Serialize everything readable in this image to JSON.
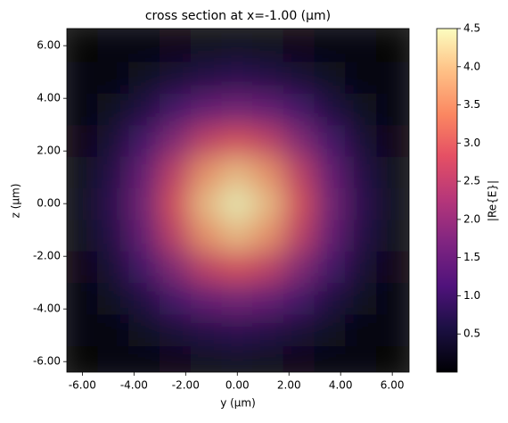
{
  "chart_data": {
    "type": "heatmap",
    "title": "cross section at x=-1.00 (μm)",
    "x_label": "y (μm)",
    "y_label": "z (μm)",
    "colorbar_label": "|Re{E}|",
    "colormap": "magma",
    "x": [
      -6,
      -4.8,
      -3.6,
      -2.4,
      -1.2,
      0,
      1.2,
      2.4,
      3.6,
      4.8,
      6
    ],
    "y": [
      -6,
      -4.8,
      -3.6,
      -2.4,
      -1.2,
      0,
      1.2,
      2.4,
      3.6,
      4.8,
      6
    ],
    "values": [
      [
        0.02,
        0.04,
        0.1,
        0.17,
        0.24,
        0.27,
        0.24,
        0.17,
        0.1,
        0.04,
        0.02
      ],
      [
        0.04,
        0.12,
        0.27,
        0.47,
        0.66,
        0.74,
        0.66,
        0.47,
        0.27,
        0.12,
        0.04
      ],
      [
        0.1,
        0.27,
        0.59,
        1.04,
        1.46,
        1.63,
        1.46,
        1.04,
        0.59,
        0.27,
        0.1
      ],
      [
        0.17,
        0.47,
        1.04,
        1.83,
        2.57,
        2.87,
        2.57,
        1.83,
        1.04,
        0.47,
        0.17
      ],
      [
        0.24,
        0.66,
        1.46,
        2.57,
        3.6,
        4.02,
        3.6,
        2.57,
        1.46,
        0.66,
        0.24
      ],
      [
        0.27,
        0.74,
        1.63,
        2.87,
        4.02,
        4.5,
        4.02,
        2.87,
        1.63,
        0.74,
        0.27
      ],
      [
        0.24,
        0.66,
        1.46,
        2.57,
        3.6,
        4.02,
        3.6,
        2.57,
        1.46,
        0.66,
        0.24
      ],
      [
        0.17,
        0.47,
        1.04,
        1.83,
        2.57,
        2.87,
        2.57,
        1.83,
        1.04,
        0.47,
        0.17
      ],
      [
        0.1,
        0.27,
        0.59,
        1.04,
        1.46,
        1.63,
        1.46,
        1.04,
        0.59,
        0.27,
        0.1
      ],
      [
        0.04,
        0.12,
        0.27,
        0.47,
        0.66,
        0.74,
        0.66,
        0.47,
        0.27,
        0.12,
        0.04
      ],
      [
        0.02,
        0.04,
        0.1,
        0.17,
        0.24,
        0.27,
        0.24,
        0.17,
        0.1,
        0.04,
        0.02
      ]
    ],
    "xlim": [
      -6.6,
      6.65
    ],
    "ylim": [
      -6.4,
      6.65
    ],
    "xticks": [
      {
        "value": -6,
        "label": "-6.00"
      },
      {
        "value": -4,
        "label": "-4.00"
      },
      {
        "value": -2,
        "label": "-2.00"
      },
      {
        "value": 0,
        "label": "0.00"
      },
      {
        "value": 2,
        "label": "2.00"
      },
      {
        "value": 4,
        "label": "4.00"
      },
      {
        "value": 6,
        "label": "6.00"
      }
    ],
    "yticks": [
      {
        "value": -6,
        "label": "-6.00"
      },
      {
        "value": -4,
        "label": "-4.00"
      },
      {
        "value": -2,
        "label": "-2.00"
      },
      {
        "value": 0,
        "label": "0.00"
      },
      {
        "value": 2,
        "label": "2.00"
      },
      {
        "value": 4,
        "label": "4.00"
      },
      {
        "value": 6,
        "label": "6.00"
      }
    ],
    "clim": [
      0,
      4.5
    ],
    "cticks": [
      0.5,
      {
        "value": 1,
        "label": "1.0"
      },
      1.5,
      {
        "value": 2,
        "label": "2.0"
      },
      2.5,
      {
        "value": 3,
        "label": "3.0"
      },
      3.5,
      {
        "value": 4,
        "label": "4.0"
      },
      4.5
    ]
  }
}
